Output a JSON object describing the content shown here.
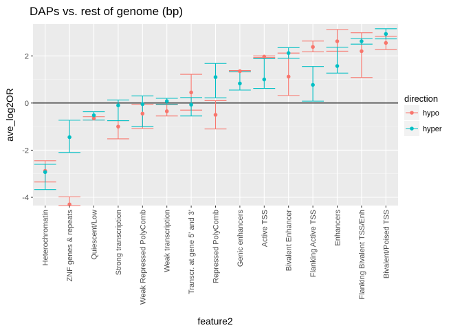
{
  "chart_data": {
    "type": "errorbar",
    "title": "DAPs vs. rest of genome (bp)",
    "xlabel": "feature2",
    "ylabel": "ave_log2OR",
    "ylim": [
      -4.35,
      3.35
    ],
    "yticks": [
      -4,
      -2,
      0,
      2
    ],
    "hline": 0,
    "legend": {
      "title": "direction",
      "position": "right"
    },
    "categories": [
      "Heterochromatin",
      "ZNF genes & repeats",
      "Quiescent/Low",
      "Strong transcription",
      "Weak Repressed PolyComb",
      "Weak transcription",
      "Transcr. at gene 5' and 3'",
      "Repressed PolyComb",
      "Genic enhancers",
      "Active TSS",
      "Bivalent Enhancer",
      "Flanking Active TSS",
      "Enhancers",
      "Flanking Bivalent TSS/Enh",
      "Bivalent/Poised TSS"
    ],
    "series": [
      {
        "name": "hypo",
        "color": "#F8766D",
        "values": [
          -2.88,
          -4.3,
          -0.65,
          -1.0,
          -0.45,
          -0.35,
          0.45,
          -0.5,
          1.35,
          1.97,
          1.12,
          2.38,
          2.62,
          2.2,
          2.55
        ],
        "lower": [
          -3.35,
          -4.4,
          -0.72,
          -1.52,
          -1.08,
          -0.55,
          -0.3,
          -1.1,
          1.32,
          1.93,
          0.32,
          2.17,
          2.2,
          1.08,
          2.27
        ],
        "upper": [
          -2.45,
          -3.98,
          -0.58,
          -0.75,
          -0.05,
          -0.07,
          1.22,
          0.1,
          1.38,
          2.0,
          2.12,
          2.63,
          3.12,
          2.98,
          2.83
        ]
      },
      {
        "name": "hyper",
        "color": "#00BFC4",
        "values": [
          -2.93,
          -1.45,
          -0.52,
          -0.1,
          -0.05,
          0.08,
          -0.07,
          1.1,
          0.83,
          1.0,
          2.12,
          0.77,
          1.57,
          2.62,
          2.93
        ],
        "lower": [
          -3.67,
          -2.1,
          -0.72,
          -0.75,
          -1.0,
          -0.05,
          -0.55,
          0.22,
          0.55,
          0.62,
          1.9,
          0.08,
          1.27,
          2.5,
          2.72
        ],
        "upper": [
          -2.6,
          -0.73,
          -0.37,
          0.13,
          0.3,
          0.2,
          0.23,
          1.68,
          1.33,
          1.88,
          2.35,
          1.55,
          2.37,
          2.73,
          3.15
        ]
      }
    ]
  }
}
